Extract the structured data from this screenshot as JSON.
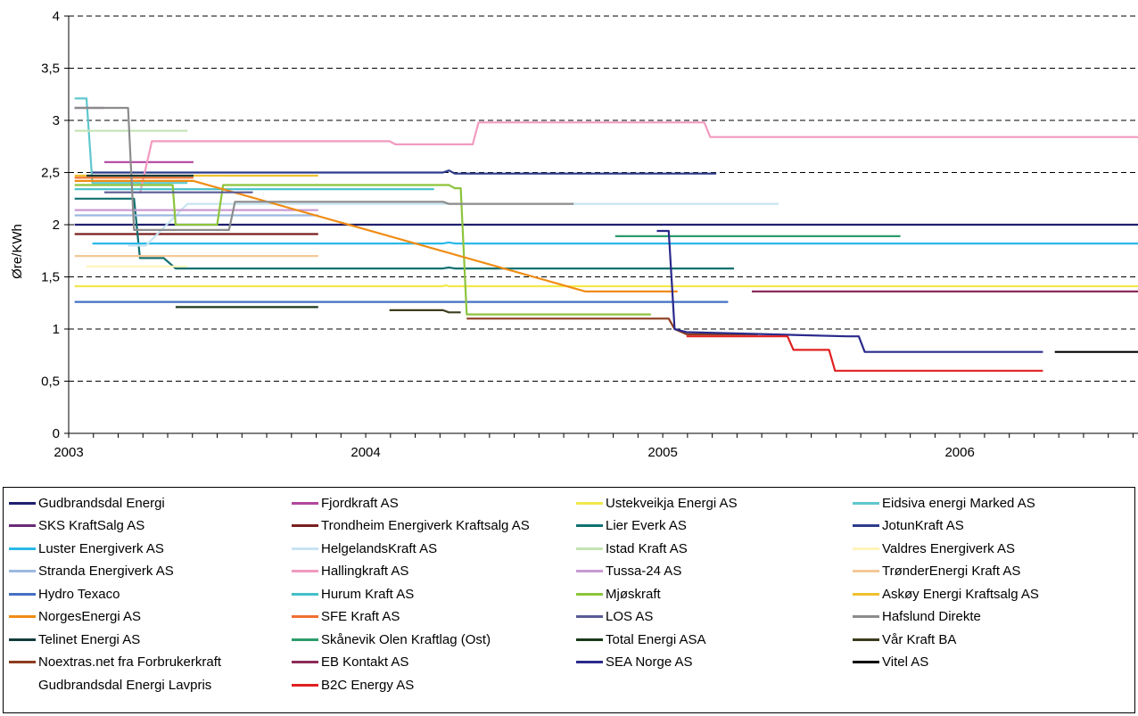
{
  "chart_data": {
    "type": "line",
    "title": "",
    "xlabel": "",
    "ylabel": "Øre/KWh",
    "xlim": [
      2003.0,
      2006.6
    ],
    "ylim": [
      0,
      4
    ],
    "yticks": [
      "0",
      "0,5",
      "1",
      "1,5",
      "2",
      "2,5",
      "3",
      "3,5",
      "4"
    ],
    "xticks": [
      "2003",
      "2004",
      "2005",
      "2006"
    ],
    "grid": "horizontal dashed",
    "legend_position": "bottom",
    "series": [
      {
        "name": "Gudbrandsdal Energi",
        "color": "#1f1f6e",
        "points": [
          [
            2003.02,
            2.0
          ],
          [
            2006.6,
            2.0
          ]
        ]
      },
      {
        "name": "Fjordkraft AS",
        "color": "#b0479f",
        "points": [
          [
            2003.12,
            2.6
          ],
          [
            2003.42,
            2.6
          ]
        ]
      },
      {
        "name": "Ustekveikja Energi AS",
        "color": "#f2e84a",
        "points": [
          [
            2003.02,
            1.41
          ],
          [
            2004.26,
            1.41
          ],
          [
            2004.27,
            1.42
          ],
          [
            2004.28,
            1.41
          ],
          [
            2006.6,
            1.41
          ]
        ]
      },
      {
        "name": "Eidsiva energi Marked AS",
        "color": "#5fc7cf",
        "points": [
          [
            2003.02,
            3.21
          ],
          [
            2003.06,
            3.21
          ],
          [
            2003.08,
            2.4
          ],
          [
            2003.4,
            2.4
          ]
        ]
      },
      {
        "name": "SKS KraftSalg AS",
        "color": "#6a2a78",
        "points": [
          [
            2003.02,
            3.12
          ],
          [
            2003.12,
            3.12
          ]
        ]
      },
      {
        "name": "Trondheim Energiverk Kraftsalg AS",
        "color": "#7a1f1f",
        "points": [
          [
            2003.02,
            1.91
          ],
          [
            2003.84,
            1.91
          ]
        ]
      },
      {
        "name": "Lier Everk AS",
        "color": "#117070",
        "points": [
          [
            2003.02,
            2.25
          ],
          [
            2003.22,
            2.25
          ],
          [
            2003.24,
            1.68
          ],
          [
            2003.32,
            1.68
          ],
          [
            2003.36,
            1.58
          ],
          [
            2004.26,
            1.58
          ],
          [
            2004.28,
            1.59
          ],
          [
            2004.3,
            1.58
          ],
          [
            2005.24,
            1.58
          ]
        ]
      },
      {
        "name": "JotunKraft AS",
        "color": "#2d3c8c",
        "points": [
          [
            2003.08,
            2.5
          ],
          [
            2004.26,
            2.5
          ],
          [
            2004.28,
            2.52
          ],
          [
            2004.3,
            2.49
          ],
          [
            2005.18,
            2.49
          ]
        ]
      },
      {
        "name": "Luster Energiverk AS",
        "color": "#2ab8e8",
        "points": [
          [
            2003.08,
            1.82
          ],
          [
            2004.26,
            1.82
          ],
          [
            2004.28,
            1.83
          ],
          [
            2004.3,
            1.82
          ],
          [
            2006.6,
            1.82
          ]
        ]
      },
      {
        "name": "HelgelandsKraft AS",
        "color": "#c7e4f2",
        "points": [
          [
            2003.2,
            1.8
          ],
          [
            2003.26,
            1.8
          ],
          [
            2003.4,
            2.2
          ],
          [
            2005.39,
            2.2
          ]
        ]
      },
      {
        "name": "Istad Kraft AS",
        "color": "#c4e4b4",
        "points": [
          [
            2003.02,
            2.9
          ],
          [
            2003.4,
            2.9
          ]
        ]
      },
      {
        "name": "Valdres Energiverk AS",
        "color": "#fff3b8",
        "points": [
          [
            2003.06,
            1.6
          ],
          [
            2003.4,
            1.6
          ]
        ]
      },
      {
        "name": "Stranda Energiverk AS",
        "color": "#9cb9e0",
        "points": [
          [
            2003.02,
            2.09
          ],
          [
            2003.84,
            2.09
          ]
        ]
      },
      {
        "name": "Hallingkraft AS",
        "color": "#f29ac0",
        "points": [
          [
            2003.24,
            2.3
          ],
          [
            2003.28,
            2.8
          ],
          [
            2004.08,
            2.8
          ],
          [
            2004.1,
            2.77
          ],
          [
            2004.36,
            2.77
          ],
          [
            2004.38,
            2.98
          ],
          [
            2005.14,
            2.98
          ],
          [
            2005.16,
            2.84
          ],
          [
            2006.6,
            2.84
          ]
        ]
      },
      {
        "name": "Tussa-24 AS",
        "color": "#c89ad2",
        "points": [
          [
            2003.02,
            2.14
          ],
          [
            2003.84,
            2.14
          ]
        ]
      },
      {
        "name": "TrønderEnergi Kraft AS",
        "color": "#f4c896",
        "points": [
          [
            2003.02,
            1.7
          ],
          [
            2003.84,
            1.7
          ]
        ]
      },
      {
        "name": "Hydro Texaco",
        "color": "#4470c4",
        "points": [
          [
            2003.02,
            1.26
          ],
          [
            2005.22,
            1.26
          ]
        ]
      },
      {
        "name": "Hurum Kraft AS",
        "color": "#44c0c8",
        "points": [
          [
            2003.02,
            2.34
          ],
          [
            2004.23,
            2.34
          ]
        ]
      },
      {
        "name": "Mjøskraft",
        "color": "#8cc43c",
        "points": [
          [
            2003.02,
            2.38
          ],
          [
            2003.35,
            2.38
          ],
          [
            2003.36,
            2.0
          ],
          [
            2003.5,
            2.0
          ],
          [
            2003.52,
            2.38
          ],
          [
            2004.28,
            2.38
          ],
          [
            2004.3,
            2.35
          ],
          [
            2004.32,
            2.35
          ],
          [
            2004.34,
            1.14
          ],
          [
            2004.96,
            1.14
          ]
        ]
      },
      {
        "name": "Askøy Energi Kraftsalg AS",
        "color": "#f0c030",
        "points": [
          [
            2003.02,
            2.47
          ],
          [
            2003.84,
            2.47
          ]
        ]
      },
      {
        "name": "NorgesEnergi AS",
        "color": "#f08c14",
        "points": [
          [
            2003.02,
            2.42
          ],
          [
            2003.42,
            2.42
          ],
          [
            2004.74,
            1.36
          ],
          [
            2005.05,
            1.36
          ]
        ]
      },
      {
        "name": "SFE Kraft AS",
        "color": "#f07030",
        "points": [
          [
            2003.02,
            2.45
          ],
          [
            2003.42,
            2.45
          ]
        ]
      },
      {
        "name": "LOS AS",
        "color": "#5a5a96",
        "points": [
          [
            2003.12,
            2.31
          ],
          [
            2003.62,
            2.31
          ]
        ]
      },
      {
        "name": "Hafslund Direkte",
        "color": "#8c8c8c",
        "points": [
          [
            2003.02,
            3.12
          ],
          [
            2003.2,
            3.12
          ],
          [
            2003.22,
            1.95
          ],
          [
            2003.54,
            1.95
          ],
          [
            2003.56,
            2.22
          ],
          [
            2004.26,
            2.22
          ],
          [
            2004.28,
            2.2
          ],
          [
            2004.7,
            2.2
          ]
        ]
      },
      {
        "name": "Telinet Energi AS",
        "color": "#143c3c",
        "points": [
          [
            2003.06,
            2.47
          ],
          [
            2003.42,
            2.47
          ]
        ]
      },
      {
        "name": "Skånevik Olen Kraftlag (Ost)",
        "color": "#2c9c6c",
        "points": [
          [
            2004.84,
            1.89
          ],
          [
            2005.8,
            1.89
          ]
        ]
      },
      {
        "name": "Total Energi ASA",
        "color": "#1a3a1a",
        "points": [
          [
            2003.36,
            1.21
          ],
          [
            2003.84,
            1.21
          ]
        ]
      },
      {
        "name": "Vår Kraft BA",
        "color": "#3c3c1e",
        "points": [
          [
            2004.08,
            1.18
          ],
          [
            2004.26,
            1.18
          ],
          [
            2004.28,
            1.16
          ],
          [
            2004.32,
            1.16
          ]
        ]
      },
      {
        "name": "Noextras.net fra Forbrukerkraft",
        "color": "#8c3c1e",
        "points": [
          [
            2004.34,
            1.1
          ],
          [
            2005.02,
            1.1
          ],
          [
            2005.04,
            1.0
          ],
          [
            2005.08,
            0.95
          ],
          [
            2005.32,
            0.95
          ]
        ]
      },
      {
        "name": "EB Kontakt AS",
        "color": "#8c2c5a",
        "points": [
          [
            2005.3,
            1.36
          ],
          [
            2006.6,
            1.36
          ]
        ]
      },
      {
        "name": "SEA Norge AS",
        "color": "#2a2a8c",
        "points": [
          [
            2004.98,
            1.94
          ],
          [
            2005.02,
            1.94
          ],
          [
            2005.04,
            1.0
          ],
          [
            2005.08,
            0.97
          ],
          [
            2005.62,
            0.93
          ],
          [
            2005.66,
            0.93
          ],
          [
            2005.68,
            0.78
          ],
          [
            2006.28,
            0.78
          ]
        ]
      },
      {
        "name": "Vitel AS",
        "color": "#000000",
        "points": [
          [
            2006.32,
            0.78
          ],
          [
            2006.6,
            0.78
          ]
        ]
      },
      {
        "name": "Gudbrandsdal Energi Lavpris",
        "color": "#ffffff",
        "points": []
      },
      {
        "name": "B2C Energy AS",
        "color": "#e02020",
        "points": [
          [
            2005.08,
            0.93
          ],
          [
            2005.42,
            0.93
          ],
          [
            2005.44,
            0.8
          ],
          [
            2005.56,
            0.8
          ],
          [
            2005.58,
            0.6
          ],
          [
            2006.28,
            0.6
          ]
        ]
      }
    ]
  }
}
